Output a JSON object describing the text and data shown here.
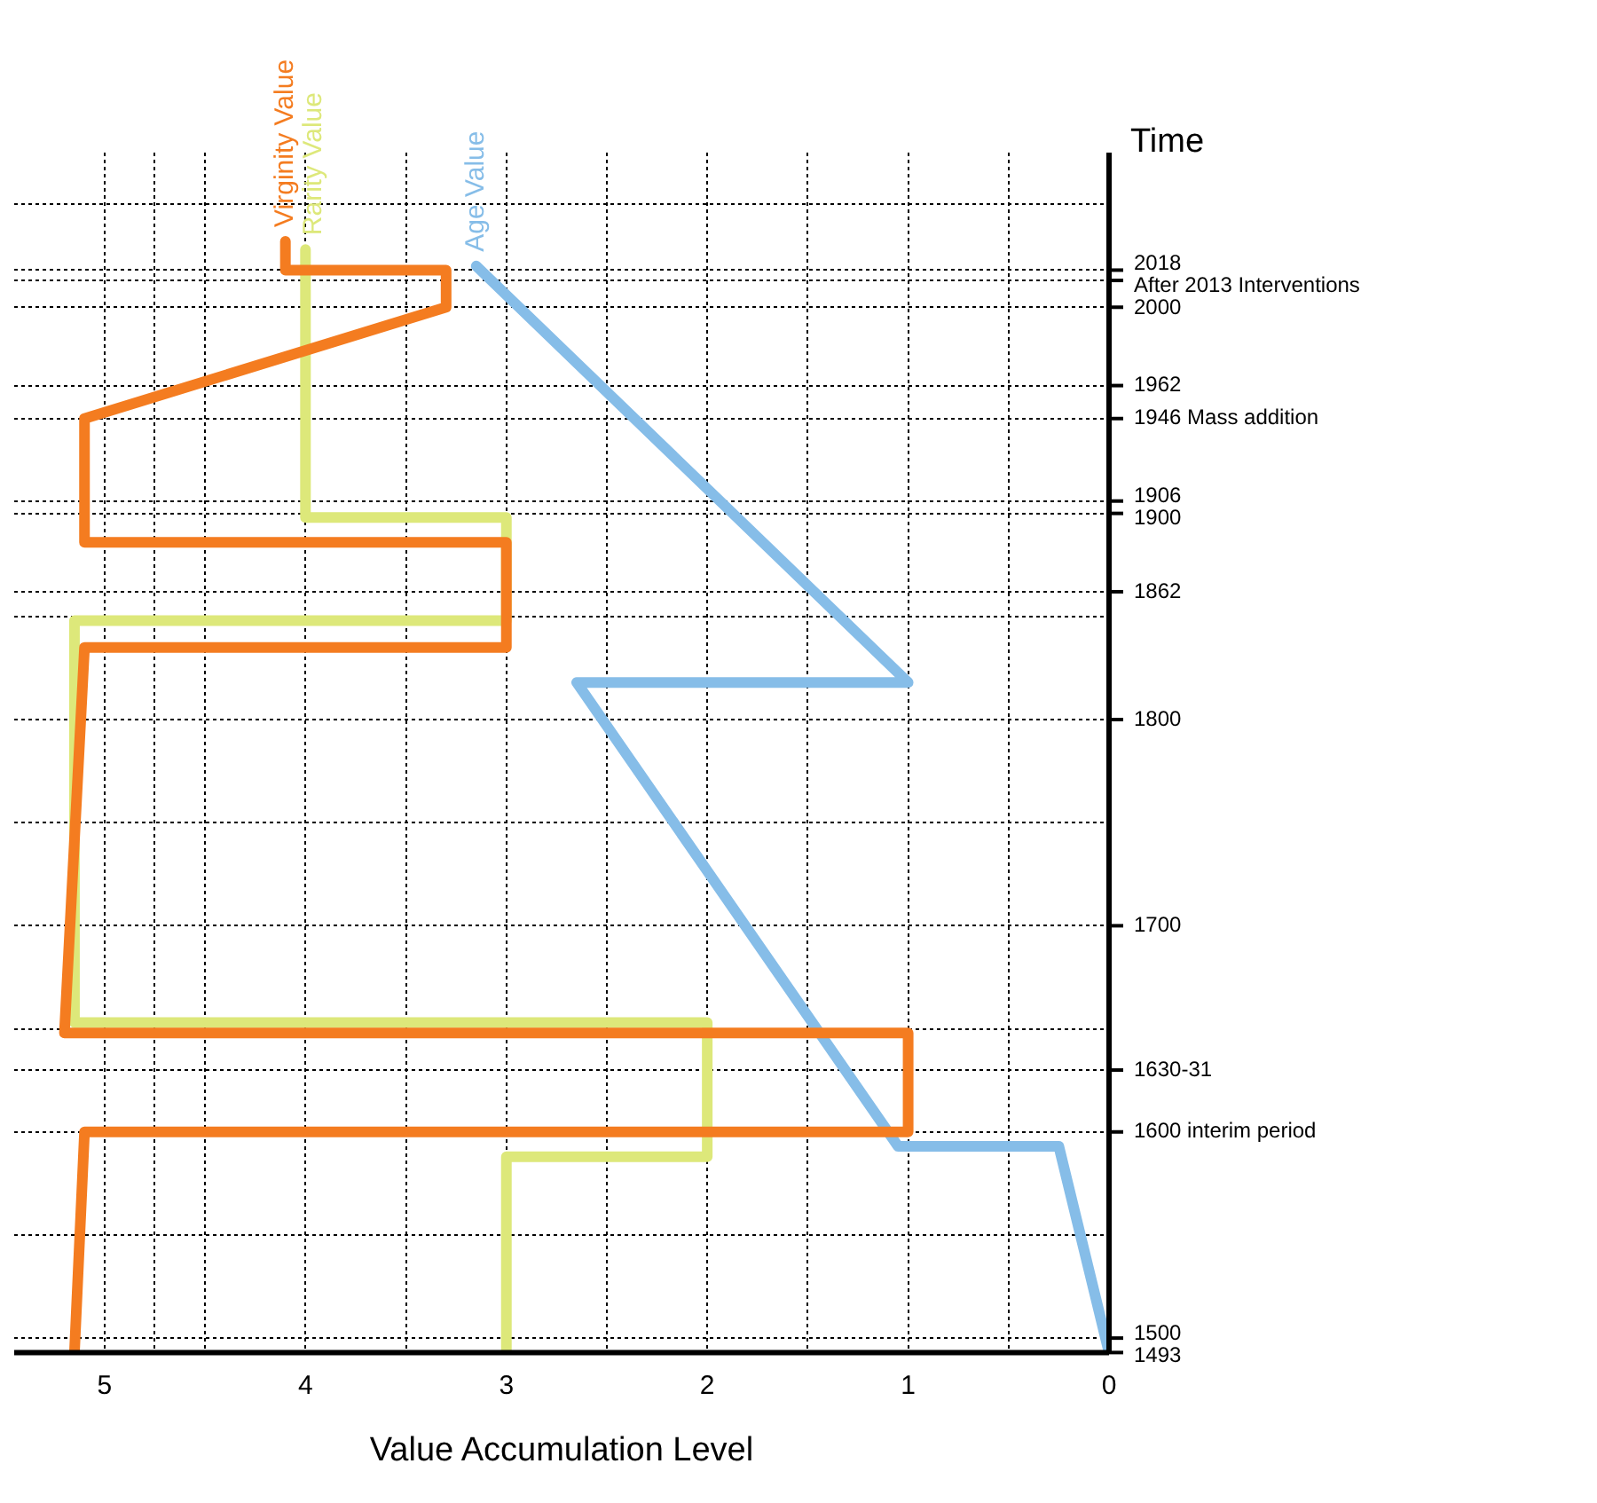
{
  "chart_data": {
    "type": "line",
    "orientation": "horizontal",
    "xlabel": "Value Accumulation Level",
    "ylabel": "Time",
    "xlim": [
      5.45,
      0
    ],
    "xticks": [
      0,
      {
        "value": 0.5,
        "label": null
      },
      1,
      {
        "value": 1.5,
        "label": null
      },
      2,
      {
        "value": 2.5,
        "label": null
      },
      3,
      {
        "value": 3.5,
        "label": null
      },
      4,
      {
        "value": 4.5,
        "label": null
      },
      {
        "value": 4.75,
        "label": null
      },
      5
    ],
    "ylim": [
      1493,
      2075
    ],
    "yticks": [
      1493,
      1500,
      {
        "value": 1550,
        "label": null
      },
      {
        "value": 1600,
        "label": "1600 interim period"
      },
      {
        "value": 1630,
        "label": "1630-31"
      },
      {
        "value": 1650,
        "label": null
      },
      1700,
      {
        "value": 1750,
        "label": null
      },
      1800,
      {
        "value": 1850,
        "label": null
      },
      1862,
      1900,
      1906,
      {
        "value": 1946,
        "label": "1946 Mass addition"
      },
      1962,
      2000,
      {
        "value": 2013,
        "label": "After 2013 Interventions"
      },
      2018,
      {
        "value": 2050,
        "label": null
      }
    ],
    "grid": true,
    "marker": "none",
    "series": [
      {
        "name": "Age Value",
        "color": "#86bde8",
        "x": [
          1493,
          1593,
          1593,
          1818,
          1818,
          2020
        ],
        "values": [
          0,
          0.25,
          1.05,
          2.65,
          1.0,
          3.15
        ]
      },
      {
        "name": "Rarity Value",
        "color": "#dde87a",
        "x": [
          1493,
          1588,
          1588,
          1653,
          1653,
          1848,
          1848,
          1898,
          1898,
          2028
        ],
        "values": [
          3,
          3,
          2,
          2,
          5.15,
          5.15,
          3,
          3,
          4,
          4
        ]
      },
      {
        "name": "Virginity Value",
        "color": "#f47c20",
        "x": [
          1493,
          1600,
          1600,
          1648,
          1648,
          1835,
          1835,
          1886,
          1886,
          1946,
          2000,
          2018,
          2018,
          2032
        ],
        "values": [
          5.15,
          5.1,
          1,
          1,
          5.2,
          5.1,
          3,
          3,
          5.1,
          5.1,
          3.3,
          3.3,
          4.1,
          4.1
        ]
      }
    ]
  }
}
